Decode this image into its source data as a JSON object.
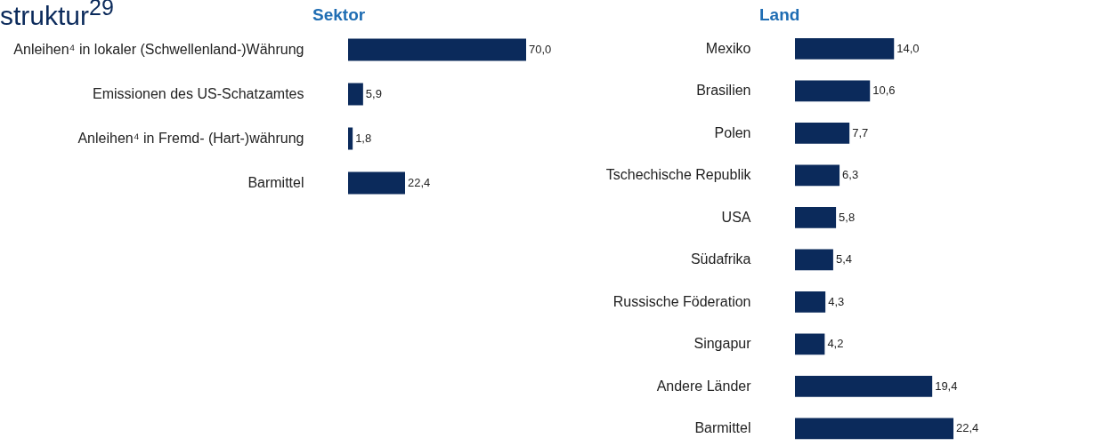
{
  "chart_data": [
    {
      "type": "bar",
      "orientation": "horizontal",
      "title": "Sektor",
      "annotations": [
        "struktur$^{29}$"
      ],
      "categories": [
        "Anleihen⁴   in lokaler (Schwellenland-)Währung",
        "Emissionen des US-Schatzamtes",
        "Anleihen⁴   in Fremd- (Hart-)währung",
        "Barmittel"
      ],
      "values": [
        70.0,
        5.9,
        1.8,
        22.4
      ],
      "value_labels": [
        "70,0",
        "5,9",
        "1,8",
        "22,4"
      ],
      "color": "#0b2a5b",
      "tick_labels": "y"
    },
    {
      "type": "bar",
      "orientation": "horizontal",
      "title": "Land",
      "categories": [
        "Mexiko",
        "Brasilien",
        "Polen",
        "Tschechische Republik",
        "USA",
        "Südafrika",
        "Russische Föderation",
        "Singapur",
        "Andere Länder",
        "Barmittel"
      ],
      "values": [
        14.0,
        10.6,
        7.7,
        6.3,
        5.8,
        5.4,
        4.3,
        4.2,
        19.4,
        22.4
      ],
      "value_labels": [
        "14,0",
        "10,6",
        "7,7",
        "6,3",
        "5,8",
        "5,4",
        "4,3",
        "4,2",
        "19,4",
        "22,4"
      ],
      "color": "#0b2a5b",
      "tick_labels": "y"
    }
  ]
}
